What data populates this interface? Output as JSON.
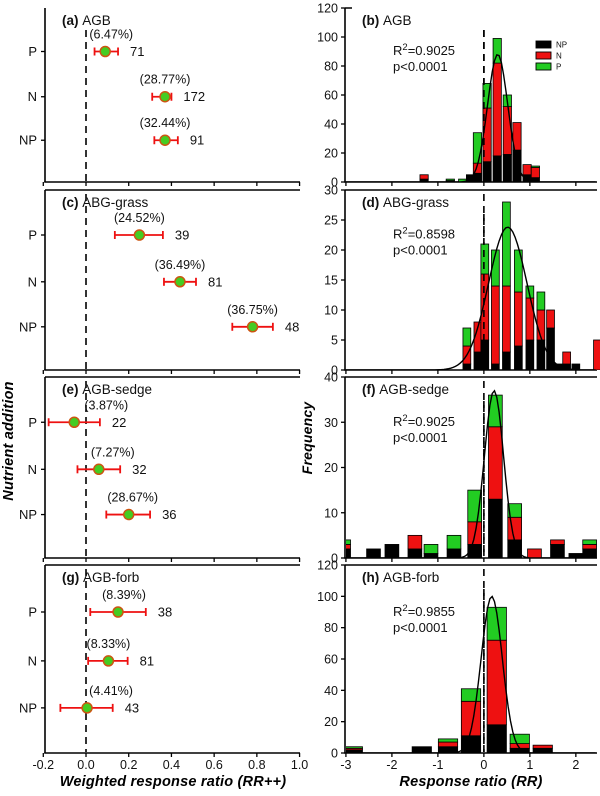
{
  "labels": {
    "left_xlabel": "Weighted response ratio (RR++)",
    "right_xlabel": "Response ratio (RR)",
    "left_ylabel": "Nutrient addition",
    "right_ylabel": "Frequency"
  },
  "colors": {
    "np": "#000000",
    "n": "#ee1111",
    "p": "#22cc22",
    "point_fill": "#44cc22",
    "point_stroke": "#cc5511",
    "error_bar": "#ee1111",
    "curve": "#000000",
    "axis": "#000000",
    "text": "#111111"
  },
  "left_axis": {
    "xlim": [
      -0.192,
      1.002
    ],
    "tick_values": [
      -0.2,
      0.0,
      0.2,
      0.4,
      0.6,
      0.8,
      1.0
    ],
    "tick_labels": [
      "-0.2",
      "0.0",
      "0.2",
      "0.4",
      "0.6",
      "0.8",
      "1.0"
    ]
  },
  "right_axis": {
    "xlim": [
      -3.02,
      2.46
    ],
    "tick_values": [
      -3,
      -2,
      -1,
      0,
      1,
      2
    ],
    "tick_labels": [
      "-3",
      "-2",
      "-1",
      "0",
      "1",
      "2"
    ]
  },
  "chart_data": [
    {
      "panel": "a",
      "type": "scatter",
      "column": "left",
      "row": 0,
      "title_prefix": "(a)",
      "title": "AGB",
      "zero_line": 0,
      "categories": [
        "P",
        "N",
        "NP"
      ],
      "points": [
        {
          "cat": "P",
          "value": 0.09,
          "ci": [
            0.04,
            0.15
          ],
          "pct": "(6.47%)",
          "n": "71",
          "pct_dx": 6
        },
        {
          "cat": "N",
          "value": 0.37,
          "ci": [
            0.31,
            0.4
          ],
          "pct": "(28.77%)",
          "n": "172",
          "pct_dx": 0
        },
        {
          "cat": "NP",
          "value": 0.37,
          "ci": [
            0.32,
            0.43
          ],
          "pct": "(32.44%)",
          "n": "91",
          "pct_dx": 0
        }
      ]
    },
    {
      "panel": "b",
      "type": "bar",
      "column": "right",
      "row": 0,
      "title_prefix": "(b)",
      "title": "AGB",
      "r2": "0.9025",
      "p": "p<0.0001",
      "ylim": [
        0,
        120
      ],
      "y_ticks": [
        0,
        20,
        40,
        60,
        80,
        100,
        120
      ],
      "bar_width": 0.18,
      "bars": [
        [
          -1.3,
          2,
          3,
          0
        ],
        [
          -0.73,
          1,
          0,
          1
        ],
        [
          -0.46,
          0,
          0,
          2
        ],
        [
          -0.29,
          5,
          0,
          0
        ],
        [
          -0.14,
          6,
          7,
          21
        ],
        [
          0.07,
          14,
          37,
          17
        ],
        [
          0.29,
          18,
          64,
          17
        ],
        [
          0.51,
          19,
          33,
          8
        ],
        [
          0.72,
          22,
          19,
          0
        ],
        [
          0.94,
          5,
          7,
          0
        ],
        [
          1.12,
          3,
          7,
          1
        ]
      ],
      "curve": {
        "amp": 88,
        "mu": 0.3,
        "sigma": 0.22
      },
      "legend": [
        {
          "key": "np",
          "label": "NP"
        },
        {
          "key": "n",
          "label": "N"
        },
        {
          "key": "p",
          "label": "P"
        }
      ]
    },
    {
      "panel": "c",
      "type": "scatter",
      "column": "left",
      "row": 1,
      "title_prefix": "(c)",
      "title": "ABG-grass",
      "zero_line": 0,
      "categories": [
        "P",
        "N",
        "NP"
      ],
      "points": [
        {
          "cat": "P",
          "value": 0.25,
          "ci": [
            0.135,
            0.36
          ],
          "pct": "(24.52%)",
          "n": "39",
          "pct_dx": 0
        },
        {
          "cat": "N",
          "value": 0.44,
          "ci": [
            0.365,
            0.515
          ],
          "pct": "(36.49%)",
          "n": "81",
          "pct_dx": 0
        },
        {
          "cat": "NP",
          "value": 0.78,
          "ci": [
            0.685,
            0.875
          ],
          "pct": "(36.75%)",
          "n": "48",
          "pct_dx": 0
        }
      ]
    },
    {
      "panel": "d",
      "type": "bar",
      "column": "right",
      "row": 1,
      "title_prefix": "(d)",
      "title": "ABG-grass",
      "r2": "0.8598",
      "p": "p<0.0001",
      "ylim": [
        0,
        30
      ],
      "y_ticks": [
        0,
        5,
        10,
        15,
        20,
        25,
        30
      ],
      "bar_width": 0.17,
      "bars": [
        [
          -0.37,
          1,
          3,
          3
        ],
        [
          -0.13,
          3,
          5,
          0
        ],
        [
          0.02,
          5,
          11,
          5
        ],
        [
          0.25,
          1,
          13,
          6
        ],
        [
          0.49,
          3,
          11,
          14
        ],
        [
          0.75,
          4,
          9,
          7
        ],
        [
          1.0,
          5,
          7,
          2
        ],
        [
          1.24,
          5,
          5,
          3
        ],
        [
          1.45,
          7,
          3,
          0
        ],
        [
          1.62,
          1,
          0,
          0
        ],
        [
          1.8,
          1,
          2,
          0
        ],
        [
          2.0,
          1,
          0,
          0
        ],
        [
          2.47,
          0,
          5,
          0
        ]
      ],
      "curve": {
        "amp": 23.8,
        "mu": 0.52,
        "sigma": 0.42
      }
    },
    {
      "panel": "e",
      "type": "scatter",
      "column": "left",
      "row": 2,
      "title_prefix": "(e)",
      "title": "AGB-sedge",
      "zero_line": 0,
      "categories": [
        "P",
        "N",
        "NP"
      ],
      "points": [
        {
          "cat": "P",
          "value": -0.055,
          "ci": [
            -0.175,
            0.065
          ],
          "pct": "(3.87%)",
          "n": "22",
          "pct_dx": 32
        },
        {
          "cat": "N",
          "value": 0.06,
          "ci": [
            -0.04,
            0.16
          ],
          "pct": "(7.27%)",
          "n": "32",
          "pct_dx": 14
        },
        {
          "cat": "NP",
          "value": 0.2,
          "ci": [
            0.095,
            0.3
          ],
          "pct": "(28.67%)",
          "n": "36",
          "pct_dx": 4
        }
      ]
    },
    {
      "panel": "f",
      "type": "bar",
      "column": "right",
      "row": 2,
      "title_prefix": "(f)",
      "title": "AGB-sedge",
      "r2": "0.9025",
      "p": "p<0.0001",
      "ylim": [
        0,
        40
      ],
      "y_ticks": [
        0,
        10,
        20,
        30,
        40
      ],
      "bar_width": 0.3,
      "bars": [
        [
          -3.05,
          2,
          1,
          1
        ],
        [
          -2.4,
          2,
          0,
          0
        ],
        [
          -2.0,
          3,
          0,
          0
        ],
        [
          -1.5,
          2,
          3,
          0
        ],
        [
          -1.15,
          1,
          0,
          2
        ],
        [
          -0.65,
          2,
          0,
          3
        ],
        [
          -0.2,
          3,
          5,
          7
        ],
        [
          0.25,
          13,
          16,
          7
        ],
        [
          0.67,
          4,
          5,
          3
        ],
        [
          1.1,
          0,
          2,
          0
        ],
        [
          1.6,
          3,
          1,
          0
        ],
        [
          2.0,
          1,
          0,
          0
        ],
        [
          2.3,
          2,
          1,
          1
        ]
      ],
      "curve": {
        "amp": 37,
        "mu": 0.22,
        "sigma": 0.21
      }
    },
    {
      "panel": "g",
      "type": "scatter",
      "column": "left",
      "row": 3,
      "title_prefix": "(g)",
      "title": "AGB-forb",
      "zero_line": 0,
      "categories": [
        "P",
        "N",
        "NP"
      ],
      "points": [
        {
          "cat": "P",
          "value": 0.15,
          "ci": [
            0.02,
            0.28
          ],
          "pct": "(8.39%)",
          "n": "38",
          "pct_dx": 6
        },
        {
          "cat": "N",
          "value": 0.105,
          "ci": [
            0.01,
            0.195
          ],
          "pct": "(8.33%)",
          "n": "81",
          "pct_dx": 0
        },
        {
          "cat": "NP",
          "value": 0.005,
          "ci": [
            -0.12,
            0.125
          ],
          "pct": "(4.41%)",
          "n": "43",
          "pct_dx": 24
        }
      ]
    },
    {
      "panel": "h",
      "type": "bar",
      "column": "right",
      "row": 3,
      "title_prefix": "(h)",
      "title": "AGB-forb",
      "r2": "0.9855",
      "p": "p<0.0001",
      "ylim": [
        0,
        120
      ],
      "y_ticks": [
        0,
        20,
        40,
        60,
        80,
        100,
        120
      ],
      "bar_width": 0.42,
      "bars": [
        [
          -2.85,
          2,
          1,
          1
        ],
        [
          -1.35,
          4,
          0,
          0
        ],
        [
          -0.78,
          4,
          3,
          2
        ],
        [
          -0.28,
          11,
          22,
          8
        ],
        [
          0.28,
          18,
          54,
          21
        ],
        [
          0.78,
          3,
          3,
          6
        ],
        [
          1.28,
          3,
          2,
          0
        ]
      ],
      "curve": {
        "amp": 100,
        "mu": 0.17,
        "sigma": 0.23
      }
    }
  ]
}
